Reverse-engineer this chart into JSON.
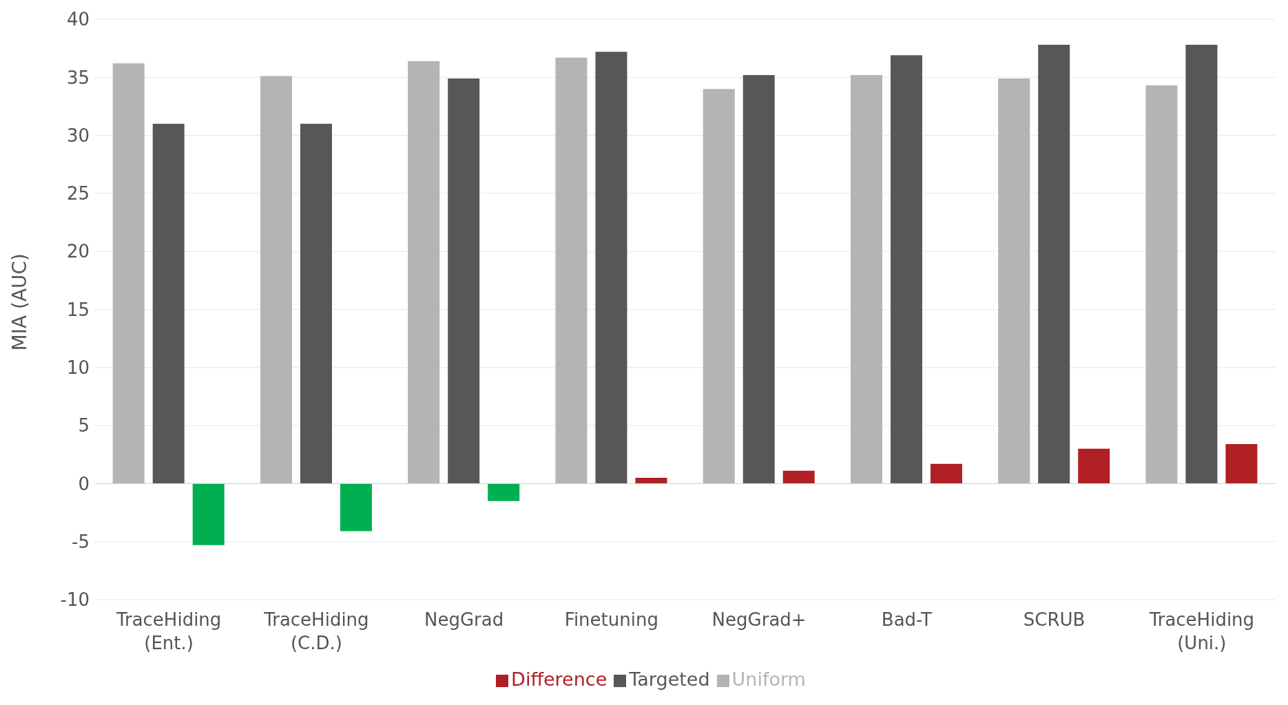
{
  "chart_data": {
    "type": "bar",
    "ylabel": "MIA (AUC)",
    "categories": [
      "TraceHiding (Ent.)",
      "TraceHiding (C.D.)",
      "NegGrad",
      "Finetuning",
      "NegGrad+",
      "Bad-T",
      "SCRUB",
      "TraceHiding (Uni.)"
    ],
    "series": [
      {
        "name": "Uniform",
        "color": "#b4b4b4",
        "values": [
          36.2,
          35.1,
          36.4,
          36.7,
          34.0,
          35.2,
          34.9,
          34.3
        ]
      },
      {
        "name": "Targeted",
        "color": "#575757",
        "values": [
          31.0,
          31.0,
          34.9,
          37.2,
          35.2,
          36.9,
          37.8,
          37.8
        ]
      },
      {
        "name": "Difference",
        "color": "#b01f24",
        "colors": [
          "#00b050",
          "#00b050",
          "#00b050",
          "#b01f24",
          "#b01f24",
          "#b01f24",
          "#b01f24",
          "#b01f24"
        ],
        "values": [
          -5.3,
          -4.1,
          -1.5,
          0.5,
          1.1,
          1.7,
          3.0,
          3.4
        ]
      }
    ],
    "ylim": [
      -10,
      40
    ],
    "yticks": [
      -10,
      -5,
      0,
      5,
      10,
      15,
      20,
      25,
      30,
      35,
      40
    ],
    "grid": "y",
    "legend": "bottom"
  }
}
